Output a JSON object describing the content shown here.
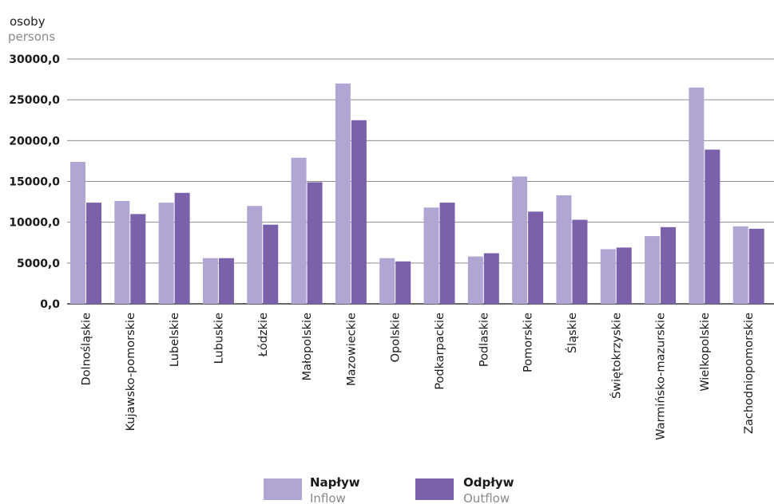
{
  "chart_data": {
    "type": "bar",
    "y_unit_pl": "osoby",
    "y_unit_en": "persons",
    "ylim": [
      0,
      30000
    ],
    "yticks": [
      0,
      5000,
      10000,
      15000,
      20000,
      25000,
      30000
    ],
    "ytick_labels": [
      "0,0",
      "5000,0",
      "10000,0",
      "15000,0",
      "20000,0",
      "25000,0",
      "30000,0"
    ],
    "grid": true,
    "legend_position": "bottom",
    "categories": [
      "Dolnośląskie",
      "Kujawsko-pomorskie",
      "Lubelskie",
      "Lubuskie",
      "Łódzkie",
      "Małopolskie",
      "Mazowieckie",
      "Opolskie",
      "Podkarpackie",
      "Podlaskie",
      "Pomorskie",
      "Śląskie",
      "Świętokrzyskie",
      "Warmińsko-mazurskie",
      "Wielkopolskie",
      "Zachodniopomorskie"
    ],
    "series": [
      {
        "name": "Napływ",
        "name_en": "Inflow",
        "color": "#b1a5d3",
        "values": [
          17400,
          12600,
          12400,
          5600,
          12000,
          17900,
          27000,
          5600,
          11800,
          5800,
          15600,
          13300,
          6700,
          8300,
          26500,
          9500
        ]
      },
      {
        "name": "Odpływ",
        "name_en": "Outflow",
        "color": "#7b61aa",
        "values": [
          12400,
          11000,
          13600,
          5600,
          9700,
          14900,
          22500,
          5200,
          12400,
          6200,
          11300,
          10300,
          6900,
          9400,
          18900,
          9200
        ]
      }
    ]
  }
}
